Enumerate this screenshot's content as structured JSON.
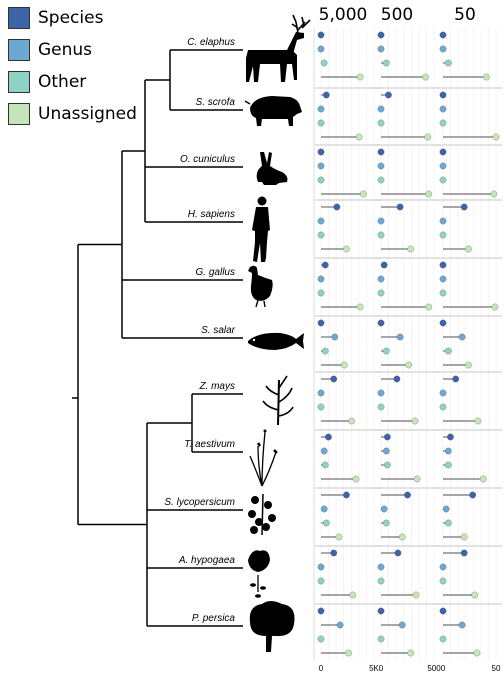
{
  "legend": [
    {
      "label": "Species",
      "color": "#3d64a8"
    },
    {
      "label": "Genus",
      "color": "#6ea7d2"
    },
    {
      "label": "Other",
      "color": "#8fd2c5"
    },
    {
      "label": "Unassigned",
      "color": "#c4e6b9"
    }
  ],
  "panels": [
    {
      "header": "5,000",
      "max": 5000,
      "ticks": [
        "0",
        "5K"
      ]
    },
    {
      "header": "500",
      "max": 500,
      "ticks": [
        "0",
        "500"
      ]
    },
    {
      "header": "50",
      "max": 50,
      "ticks": [
        "0",
        "50"
      ]
    }
  ],
  "species": [
    {
      "name": "C. elaphus",
      "icon": "deer-icon",
      "values": [
        [
          0,
          0,
          300,
          3700
        ],
        [
          0,
          0,
          50,
          420
        ],
        [
          0,
          0,
          5,
          41
        ]
      ]
    },
    {
      "name": "S. scrofa",
      "icon": "boar-icon",
      "values": [
        [
          500,
          0,
          0,
          3600
        ],
        [
          70,
          0,
          0,
          440
        ],
        [
          0,
          0,
          0,
          50
        ]
      ]
    },
    {
      "name": "O. cuniculus",
      "icon": "rabbit-icon",
      "values": [
        [
          0,
          0,
          0,
          4000
        ],
        [
          0,
          0,
          0,
          450
        ],
        [
          0,
          0,
          0,
          48
        ]
      ]
    },
    {
      "name": "H. sapiens",
      "icon": "human-icon",
      "values": [
        [
          1500,
          0,
          0,
          2400
        ],
        [
          180,
          0,
          0,
          280
        ],
        [
          20,
          0,
          0,
          24
        ]
      ]
    },
    {
      "name": "G. gallus",
      "icon": "chicken-icon",
      "values": [
        [
          400,
          0,
          0,
          3700
        ],
        [
          30,
          0,
          0,
          450
        ],
        [
          0,
          0,
          0,
          49
        ]
      ]
    },
    {
      "name": "S. salar",
      "icon": "salmon-icon",
      "values": [
        [
          0,
          1300,
          400,
          2200
        ],
        [
          0,
          180,
          50,
          260
        ],
        [
          0,
          18,
          5,
          24
        ]
      ]
    },
    {
      "name": "Z. mays",
      "icon": "maize-icon",
      "values": [
        [
          1200,
          0,
          0,
          2900
        ],
        [
          150,
          0,
          0,
          320
        ],
        [
          12,
          0,
          0,
          33
        ]
      ]
    },
    {
      "name": "T. aestivum",
      "icon": "wheat-icon",
      "values": [
        [
          700,
          300,
          400,
          3300
        ],
        [
          60,
          50,
          60,
          340
        ],
        [
          7,
          5,
          5,
          38
        ]
      ]
    },
    {
      "name": "S. lycopersicum",
      "icon": "tomato-icon",
      "values": [
        [
          2400,
          300,
          500,
          1700
        ],
        [
          250,
          30,
          50,
          200
        ],
        [
          28,
          3,
          5,
          20
        ]
      ]
    },
    {
      "name": "A. hypogaea",
      "icon": "peanut-icon",
      "values": [
        [
          1200,
          0,
          0,
          3000
        ],
        [
          160,
          0,
          0,
          330
        ],
        [
          20,
          0,
          0,
          30
        ]
      ]
    },
    {
      "name": "P. persica",
      "icon": "tree-icon",
      "values": [
        [
          0,
          1800,
          0,
          2600
        ],
        [
          0,
          200,
          0,
          280
        ],
        [
          0,
          18,
          0,
          32
        ]
      ]
    }
  ]
}
